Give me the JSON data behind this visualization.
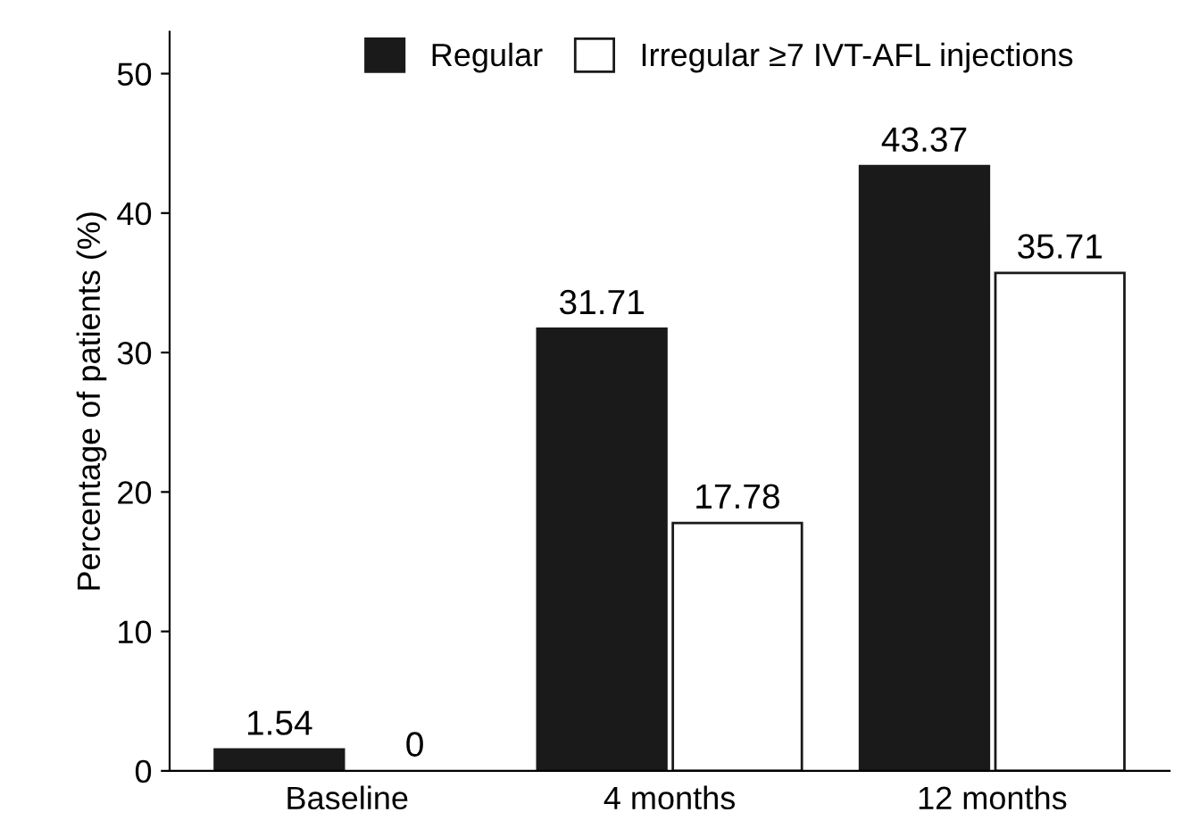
{
  "chart_data": {
    "type": "bar",
    "ylabel": "Percentage of patients (%)",
    "categories": [
      "Baseline",
      "4 months",
      "12 months"
    ],
    "series": [
      {
        "name": "Regular",
        "color": "#1a1a1a",
        "values": [
          1.54,
          31.71,
          43.37
        ]
      },
      {
        "name": "Irregular ≥7 IVT-AFL injections",
        "color": "#ffffff",
        "values": [
          0,
          17.78,
          35.71
        ]
      }
    ],
    "ylim": [
      0,
      53
    ],
    "yticks": [
      0,
      10,
      20,
      30,
      40,
      50
    ],
    "data_labels": true,
    "legend": "top",
    "grid": false
  }
}
